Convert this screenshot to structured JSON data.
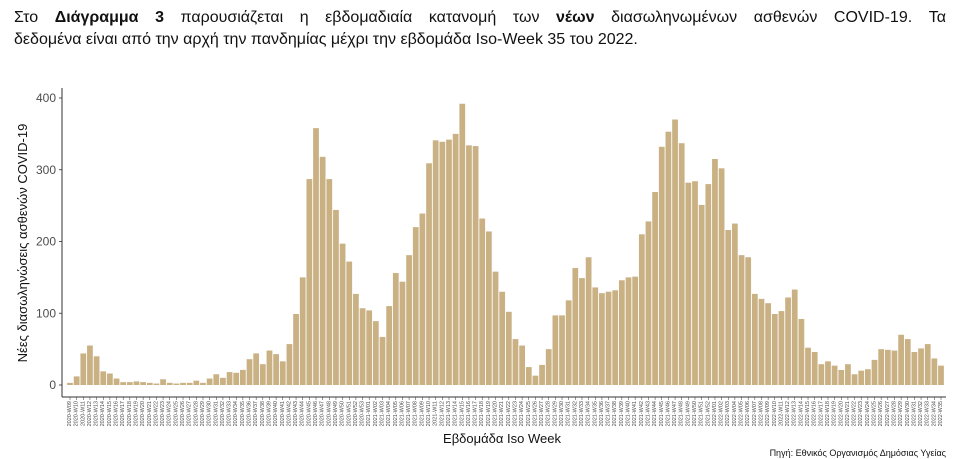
{
  "intro": {
    "l1_a": "Στο ",
    "l1_b": "Διάγραμμα 3",
    "l1_c": " παρουσιάζεται η εβδομαδιαία κατανομή των ",
    "l1_d": "νέων",
    "l1_e": " διασωληνωμένων ασθενών COVID-19.  Τα",
    "l2": "δεδομένα είναι από την αρχή την πανδημίας μέχρι την εβδομάδα Iso-Week 35 του 2022."
  },
  "source": "Πηγή: Εθνικός Οργανισμός Δημόσιας Υγείας",
  "colors": {
    "bar": "#C9B184",
    "text": "#111111",
    "axis": "#333333"
  },
  "chart_data": {
    "type": "bar",
    "xlabel": "Εβδομάδα Iso Week",
    "ylabel": "Νέες διασωληνώσεις ασθενών COVID-19",
    "ylim": [
      0,
      400
    ],
    "yticks": [
      0,
      100,
      200,
      300,
      400
    ],
    "grid": false,
    "legend": "none",
    "categories": [
      "2020-W09",
      "2020-W10",
      "2020-W11",
      "2020-W12",
      "2020-W13",
      "2020-W14",
      "2020-W15",
      "2020-W16",
      "2020-W17",
      "2020-W18",
      "2020-W19",
      "2020-W20",
      "2020-W21",
      "2020-W22",
      "2020-W23",
      "2020-W24",
      "2020-W25",
      "2020-W26",
      "2020-W27",
      "2020-W28",
      "2020-W29",
      "2020-W30",
      "2020-W31",
      "2020-W32",
      "2020-W33",
      "2020-W34",
      "2020-W35",
      "2020-W36",
      "2020-W37",
      "2020-W38",
      "2020-W39",
      "2020-W40",
      "2020-W41",
      "2020-W42",
      "2020-W43",
      "2020-W44",
      "2020-W45",
      "2020-W46",
      "2020-W47",
      "2020-W48",
      "2020-W49",
      "2020-W50",
      "2020-W51",
      "2020-W52",
      "2020-W53",
      "2021-W01",
      "2021-W02",
      "2021-W03",
      "2021-W04",
      "2021-W05",
      "2021-W06",
      "2021-W07",
      "2021-W08",
      "2021-W09",
      "2021-W10",
      "2021-W11",
      "2021-W12",
      "2021-W13",
      "2021-W14",
      "2021-W15",
      "2021-W16",
      "2021-W17",
      "2021-W18",
      "2021-W19",
      "2021-W20",
      "2021-W21",
      "2021-W22",
      "2021-W23",
      "2021-W24",
      "2021-W25",
      "2021-W26",
      "2021-W27",
      "2021-W28",
      "2021-W29",
      "2021-W30",
      "2021-W31",
      "2021-W32",
      "2021-W33",
      "2021-W34",
      "2021-W35",
      "2021-W36",
      "2021-W37",
      "2021-W38",
      "2021-W39",
      "2021-W40",
      "2021-W41",
      "2021-W42",
      "2021-W43",
      "2021-W44",
      "2021-W45",
      "2021-W46",
      "2021-W47",
      "2021-W48",
      "2021-W49",
      "2021-W50",
      "2021-W51",
      "2021-W52",
      "2022-W01",
      "2022-W02",
      "2022-W03",
      "2022-W04",
      "2022-W05",
      "2022-W06",
      "2022-W07",
      "2022-W08",
      "2022-W09",
      "2022-W10",
      "2022-W11",
      "2022-W12",
      "2022-W13",
      "2022-W14",
      "2022-W15",
      "2022-W16",
      "2022-W17",
      "2022-W18",
      "2022-W19",
      "2022-W20",
      "2022-W21",
      "2022-W22",
      "2022-W23",
      "2022-W24",
      "2022-W25",
      "2022-W26",
      "2022-W27",
      "2022-W28",
      "2022-W29",
      "2022-W30",
      "2022-W31",
      "2022-W32",
      "2022-W33",
      "2022-W34",
      "2022-W35"
    ],
    "values": [
      3,
      12,
      44,
      55,
      40,
      19,
      16,
      9,
      4,
      4,
      5,
      4,
      3,
      2,
      8,
      3,
      2,
      3,
      3,
      6,
      3,
      9,
      15,
      10,
      18,
      17,
      21,
      36,
      44,
      29,
      48,
      43,
      33,
      57,
      99,
      150,
      287,
      358,
      318,
      287,
      244,
      197,
      172,
      127,
      107,
      104,
      89,
      67,
      110,
      156,
      144,
      181,
      220,
      239,
      309,
      341,
      339,
      342,
      350,
      392,
      334,
      333,
      232,
      214,
      158,
      130,
      102,
      64,
      55,
      25,
      13,
      28,
      50,
      97,
      97,
      118,
      163,
      149,
      178,
      136,
      128,
      130,
      132,
      146,
      150,
      151,
      210,
      228,
      269,
      332,
      353,
      370,
      337,
      282,
      284,
      251,
      280,
      315,
      302,
      216,
      225,
      181,
      178,
      127,
      120,
      114,
      99,
      103,
      122,
      133,
      92,
      52,
      46,
      29,
      33,
      27,
      21,
      29,
      15,
      20,
      22,
      35,
      50,
      49,
      48,
      70,
      64,
      46,
      51,
      57,
      37,
      27
    ]
  }
}
